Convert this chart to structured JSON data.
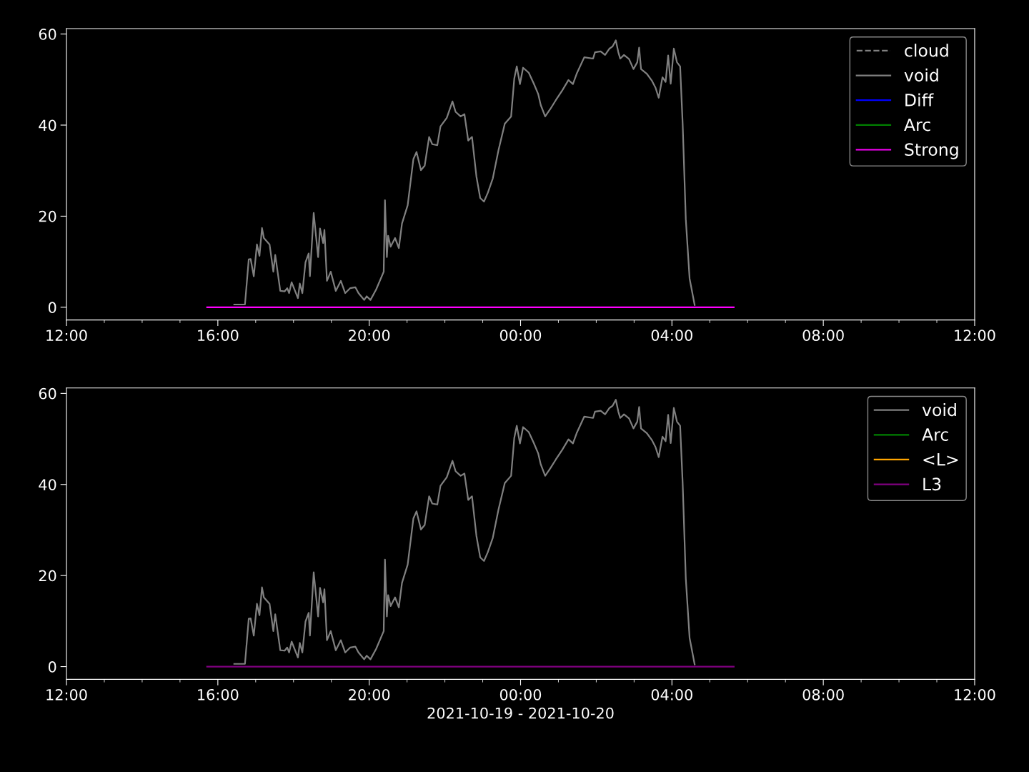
{
  "chart_data": [
    {
      "type": "line",
      "xlim": [
        "2021-10-19T12:00",
        "2021-10-20T12:00"
      ],
      "ylim": [
        -2.8,
        61.2
      ],
      "yticks": [
        0,
        20,
        40,
        60
      ],
      "xticks": [
        {
          "value": "2021-10-19T12:00",
          "label": "12:00"
        },
        {
          "value": "2021-10-19T13:00",
          "label": null
        },
        {
          "value": "2021-10-19T14:00",
          "label": null
        },
        {
          "value": "2021-10-19T15:00",
          "label": null
        },
        {
          "value": "2021-10-19T16:00",
          "label": "16:00"
        },
        {
          "value": "2021-10-19T17:00",
          "label": null
        },
        {
          "value": "2021-10-19T18:00",
          "label": null
        },
        {
          "value": "2021-10-19T19:00",
          "label": null
        },
        {
          "value": "2021-10-19T20:00",
          "label": "20:00"
        },
        {
          "value": "2021-10-19T21:00",
          "label": null
        },
        {
          "value": "2021-10-19T22:00",
          "label": null
        },
        {
          "value": "2021-10-19T23:00",
          "label": null
        },
        {
          "value": "2021-10-20T00:00",
          "label": "00:00"
        },
        {
          "value": "2021-10-20T01:00",
          "label": null
        },
        {
          "value": "2021-10-20T02:00",
          "label": null
        },
        {
          "value": "2021-10-20T03:00",
          "label": null
        },
        {
          "value": "2021-10-20T04:00",
          "label": "04:00"
        },
        {
          "value": "2021-10-20T05:00",
          "label": null
        },
        {
          "value": "2021-10-20T06:00",
          "label": null
        },
        {
          "value": "2021-10-20T07:00",
          "label": null
        },
        {
          "value": "2021-10-20T08:00",
          "label": "08:00"
        },
        {
          "value": "2021-10-20T09:00",
          "label": null
        },
        {
          "value": "2021-10-20T10:00",
          "label": null
        },
        {
          "value": "2021-10-20T11:00",
          "label": null
        },
        {
          "value": "2021-10-20T12:00",
          "label": "12:00"
        }
      ],
      "legend": "top right",
      "series": [
        {
          "name": "cloud",
          "color": "#808080",
          "line_style": "dashed"
        },
        {
          "name": "void",
          "color": "#808080",
          "x": [
            "2021-10-19T16:26",
            "2021-10-19T16:32",
            "2021-10-19T16:43",
            "2021-10-19T16:49",
            "2021-10-19T16:52",
            "2021-10-19T16:57",
            "2021-10-19T17:02",
            "2021-10-19T17:06",
            "2021-10-19T17:10",
            "2021-10-19T17:13",
            "2021-10-19T17:22",
            "2021-10-19T17:28",
            "2021-10-19T17:31",
            "2021-10-19T17:39",
            "2021-10-19T17:46",
            "2021-10-19T17:50",
            "2021-10-19T17:53",
            "2021-10-19T17:57",
            "2021-10-19T18:07",
            "2021-10-19T18:10",
            "2021-10-19T18:14",
            "2021-10-19T18:19",
            "2021-10-19T18:24",
            "2021-10-19T18:26",
            "2021-10-19T18:32",
            "2021-10-19T18:39",
            "2021-10-19T18:42",
            "2021-10-19T18:47",
            "2021-10-19T18:49",
            "2021-10-19T18:53",
            "2021-10-19T18:59",
            "2021-10-19T19:07",
            "2021-10-19T19:15",
            "2021-10-19T19:22",
            "2021-10-19T19:30",
            "2021-10-19T19:38",
            "2021-10-19T19:43",
            "2021-10-19T19:52",
            "2021-10-19T19:56",
            "2021-10-19T20:02",
            "2021-10-19T20:11",
            "2021-10-19T20:23",
            "2021-10-19T20:25",
            "2021-10-19T20:28",
            "2021-10-19T20:30",
            "2021-10-19T20:34",
            "2021-10-19T20:41",
            "2021-10-19T20:47",
            "2021-10-19T20:52",
            "2021-10-19T21:01",
            "2021-10-19T21:10",
            "2021-10-19T21:15",
            "2021-10-19T21:22",
            "2021-10-19T21:28",
            "2021-10-19T21:35",
            "2021-10-19T21:40",
            "2021-10-19T21:48",
            "2021-10-19T21:53",
            "2021-10-19T22:03",
            "2021-10-19T22:12",
            "2021-10-19T22:17",
            "2021-10-19T22:25",
            "2021-10-19T22:31",
            "2021-10-19T22:37",
            "2021-10-19T22:43",
            "2021-10-19T22:50",
            "2021-10-19T22:56",
            "2021-10-19T23:02",
            "2021-10-19T23:08",
            "2021-10-19T23:16",
            "2021-10-19T23:25",
            "2021-10-19T23:35",
            "2021-10-19T23:45",
            "2021-10-19T23:50",
            "2021-10-19T23:54",
            "2021-10-19T23:59",
            "2021-10-20T00:04",
            "2021-10-20T00:13",
            "2021-10-20T00:21",
            "2021-10-20T00:28",
            "2021-10-20T00:32",
            "2021-10-20T00:39",
            "2021-10-20T00:47",
            "2021-10-20T00:56",
            "2021-10-20T01:06",
            "2021-10-20T01:16",
            "2021-10-20T01:23",
            "2021-10-20T01:29",
            "2021-10-20T01:41",
            "2021-10-20T01:55",
            "2021-10-20T01:58",
            "2021-10-20T02:07",
            "2021-10-20T02:14",
            "2021-10-20T02:21",
            "2021-10-20T02:26",
            "2021-10-20T02:31",
            "2021-10-20T02:35",
            "2021-10-20T02:38",
            "2021-10-20T02:44",
            "2021-10-20T02:52",
            "2021-10-20T02:59",
            "2021-10-20T03:05",
            "2021-10-20T03:08",
            "2021-10-20T03:11",
            "2021-10-20T03:20",
            "2021-10-20T03:28",
            "2021-10-20T03:34",
            "2021-10-20T03:39",
            "2021-10-20T03:45",
            "2021-10-20T03:50",
            "2021-10-20T03:54",
            "2021-10-20T03:58",
            "2021-10-20T04:03",
            "2021-10-20T04:08",
            "2021-10-20T04:13",
            "2021-10-20T04:17",
            "2021-10-20T04:22",
            "2021-10-20T04:28",
            "2021-10-20T04:36"
          ],
          "values": [
            0.6,
            0.6,
            0.6,
            10.5,
            10.6,
            6.8,
            13.8,
            11.3,
            17.4,
            15.2,
            13.8,
            7.8,
            11.5,
            3.6,
            3.5,
            4.2,
            3.1,
            5.5,
            2.0,
            5.2,
            3.1,
            9.9,
            11.8,
            6.8,
            20.7,
            11.0,
            17.3,
            14.1,
            17.0,
            5.8,
            7.8,
            3.6,
            5.8,
            3.1,
            4.2,
            4.4,
            3.1,
            1.6,
            2.4,
            1.6,
            3.9,
            7.8,
            23.5,
            11.0,
            15.7,
            13.3,
            15.2,
            13.0,
            18.4,
            22.4,
            32.5,
            34.1,
            30.1,
            31.1,
            37.4,
            35.8,
            35.6,
            39.7,
            41.6,
            45.2,
            42.9,
            41.9,
            42.4,
            36.6,
            37.4,
            28.7,
            24.0,
            23.2,
            25.1,
            28.3,
            34.5,
            40.3,
            41.9,
            50.2,
            52.9,
            49.0,
            52.6,
            51.5,
            49.1,
            46.8,
            44.4,
            41.9,
            43.5,
            45.5,
            47.6,
            49.9,
            49.0,
            51.3,
            54.9,
            54.6,
            56.0,
            56.2,
            55.4,
            56.8,
            57.3,
            58.6,
            56.0,
            54.6,
            55.4,
            54.5,
            52.3,
            53.8,
            57.0,
            52.3,
            51.3,
            49.8,
            48.2,
            46.0,
            50.5,
            49.5,
            55.3,
            49.1,
            56.8,
            53.8,
            52.9,
            40.3,
            19.3,
            6.3,
            0.5
          ]
        },
        {
          "name": "Diff",
          "color": "#0000ff"
        },
        {
          "name": "Arc",
          "color": "#008000"
        },
        {
          "name": "Strong",
          "color": "#ff00ff",
          "x": [
            "2021-10-19T15:43",
            "2021-10-20T05:38"
          ],
          "values": [
            0,
            0
          ]
        }
      ]
    },
    {
      "type": "line",
      "xlim": [
        "2021-10-19T12:00",
        "2021-10-20T12:00"
      ],
      "ylim": [
        -2.8,
        61.2
      ],
      "yticks": [
        0,
        20,
        40,
        60
      ],
      "xlabel": "2021-10-19 - 2021-10-20",
      "xticks": [
        {
          "value": "2021-10-19T12:00",
          "label": "12:00"
        },
        {
          "value": "2021-10-19T13:00",
          "label": null
        },
        {
          "value": "2021-10-19T14:00",
          "label": null
        },
        {
          "value": "2021-10-19T15:00",
          "label": null
        },
        {
          "value": "2021-10-19T16:00",
          "label": "16:00"
        },
        {
          "value": "2021-10-19T17:00",
          "label": null
        },
        {
          "value": "2021-10-19T18:00",
          "label": null
        },
        {
          "value": "2021-10-19T19:00",
          "label": null
        },
        {
          "value": "2021-10-19T20:00",
          "label": "20:00"
        },
        {
          "value": "2021-10-19T21:00",
          "label": null
        },
        {
          "value": "2021-10-19T22:00",
          "label": null
        },
        {
          "value": "2021-10-19T23:00",
          "label": null
        },
        {
          "value": "2021-10-20T00:00",
          "label": "00:00"
        },
        {
          "value": "2021-10-20T01:00",
          "label": null
        },
        {
          "value": "2021-10-20T02:00",
          "label": null
        },
        {
          "value": "2021-10-20T03:00",
          "label": null
        },
        {
          "value": "2021-10-20T04:00",
          "label": "04:00"
        },
        {
          "value": "2021-10-20T05:00",
          "label": null
        },
        {
          "value": "2021-10-20T06:00",
          "label": null
        },
        {
          "value": "2021-10-20T07:00",
          "label": null
        },
        {
          "value": "2021-10-20T08:00",
          "label": "08:00"
        },
        {
          "value": "2021-10-20T09:00",
          "label": null
        },
        {
          "value": "2021-10-20T10:00",
          "label": null
        },
        {
          "value": "2021-10-20T11:00",
          "label": null
        },
        {
          "value": "2021-10-20T12:00",
          "label": "12:00"
        }
      ],
      "legend": "top right",
      "series": [
        {
          "name": "void",
          "color": "#808080",
          "x": [
            "2021-10-19T16:26",
            "2021-10-19T16:32",
            "2021-10-19T16:43",
            "2021-10-19T16:49",
            "2021-10-19T16:52",
            "2021-10-19T16:57",
            "2021-10-19T17:02",
            "2021-10-19T17:06",
            "2021-10-19T17:10",
            "2021-10-19T17:13",
            "2021-10-19T17:22",
            "2021-10-19T17:28",
            "2021-10-19T17:31",
            "2021-10-19T17:39",
            "2021-10-19T17:46",
            "2021-10-19T17:50",
            "2021-10-19T17:53",
            "2021-10-19T17:57",
            "2021-10-19T18:07",
            "2021-10-19T18:10",
            "2021-10-19T18:14",
            "2021-10-19T18:19",
            "2021-10-19T18:24",
            "2021-10-19T18:26",
            "2021-10-19T18:32",
            "2021-10-19T18:39",
            "2021-10-19T18:42",
            "2021-10-19T18:47",
            "2021-10-19T18:49",
            "2021-10-19T18:53",
            "2021-10-19T18:59",
            "2021-10-19T19:07",
            "2021-10-19T19:15",
            "2021-10-19T19:22",
            "2021-10-19T19:30",
            "2021-10-19T19:38",
            "2021-10-19T19:43",
            "2021-10-19T19:52",
            "2021-10-19T19:56",
            "2021-10-19T20:02",
            "2021-10-19T20:11",
            "2021-10-19T20:23",
            "2021-10-19T20:25",
            "2021-10-19T20:28",
            "2021-10-19T20:30",
            "2021-10-19T20:34",
            "2021-10-19T20:41",
            "2021-10-19T20:47",
            "2021-10-19T20:52",
            "2021-10-19T21:01",
            "2021-10-19T21:10",
            "2021-10-19T21:15",
            "2021-10-19T21:22",
            "2021-10-19T21:28",
            "2021-10-19T21:35",
            "2021-10-19T21:40",
            "2021-10-19T21:48",
            "2021-10-19T21:53",
            "2021-10-19T22:03",
            "2021-10-19T22:12",
            "2021-10-19T22:17",
            "2021-10-19T22:25",
            "2021-10-19T22:31",
            "2021-10-19T22:37",
            "2021-10-19T22:43",
            "2021-10-19T22:50",
            "2021-10-19T22:56",
            "2021-10-19T23:02",
            "2021-10-19T23:08",
            "2021-10-19T23:16",
            "2021-10-19T23:25",
            "2021-10-19T23:35",
            "2021-10-19T23:45",
            "2021-10-19T23:50",
            "2021-10-19T23:54",
            "2021-10-19T23:59",
            "2021-10-20T00:04",
            "2021-10-20T00:13",
            "2021-10-20T00:21",
            "2021-10-20T00:28",
            "2021-10-20T00:32",
            "2021-10-20T00:39",
            "2021-10-20T00:47",
            "2021-10-20T00:56",
            "2021-10-20T01:06",
            "2021-10-20T01:16",
            "2021-10-20T01:23",
            "2021-10-20T01:29",
            "2021-10-20T01:41",
            "2021-10-20T01:55",
            "2021-10-20T01:58",
            "2021-10-20T02:07",
            "2021-10-20T02:14",
            "2021-10-20T02:21",
            "2021-10-20T02:26",
            "2021-10-20T02:31",
            "2021-10-20T02:35",
            "2021-10-20T02:38",
            "2021-10-20T02:44",
            "2021-10-20T02:52",
            "2021-10-20T02:59",
            "2021-10-20T03:05",
            "2021-10-20T03:08",
            "2021-10-20T03:11",
            "2021-10-20T03:20",
            "2021-10-20T03:28",
            "2021-10-20T03:34",
            "2021-10-20T03:39",
            "2021-10-20T03:45",
            "2021-10-20T03:50",
            "2021-10-20T03:54",
            "2021-10-20T03:58",
            "2021-10-20T04:03",
            "2021-10-20T04:08",
            "2021-10-20T04:13",
            "2021-10-20T04:17",
            "2021-10-20T04:22",
            "2021-10-20T04:28",
            "2021-10-20T04:36"
          ],
          "values": [
            0.6,
            0.6,
            0.6,
            10.5,
            10.6,
            6.8,
            13.8,
            11.3,
            17.4,
            15.2,
            13.8,
            7.8,
            11.5,
            3.6,
            3.5,
            4.2,
            3.1,
            5.5,
            2.0,
            5.2,
            3.1,
            9.9,
            11.8,
            6.8,
            20.7,
            11.0,
            17.3,
            14.1,
            17.0,
            5.8,
            7.8,
            3.6,
            5.8,
            3.1,
            4.2,
            4.4,
            3.1,
            1.6,
            2.4,
            1.6,
            3.9,
            7.8,
            23.5,
            11.0,
            15.7,
            13.3,
            15.2,
            13.0,
            18.4,
            22.4,
            32.5,
            34.1,
            30.1,
            31.1,
            37.4,
            35.8,
            35.6,
            39.7,
            41.6,
            45.2,
            42.9,
            41.9,
            42.4,
            36.6,
            37.4,
            28.7,
            24.0,
            23.2,
            25.1,
            28.3,
            34.5,
            40.3,
            41.9,
            50.2,
            52.9,
            49.0,
            52.6,
            51.5,
            49.1,
            46.8,
            44.4,
            41.9,
            43.5,
            45.5,
            47.6,
            49.9,
            49.0,
            51.3,
            54.9,
            54.6,
            56.0,
            56.2,
            55.4,
            56.8,
            57.3,
            58.6,
            56.0,
            54.6,
            55.4,
            54.5,
            52.3,
            53.8,
            57.0,
            52.3,
            51.3,
            49.8,
            48.2,
            46.0,
            50.5,
            49.5,
            55.3,
            49.1,
            56.8,
            53.8,
            52.9,
            40.3,
            19.3,
            6.3,
            0.5
          ]
        },
        {
          "name": "Arc",
          "color": "#008000"
        },
        {
          "name": "<L>",
          "color": "#ffa500"
        },
        {
          "name": "L3",
          "color": "#800080",
          "x": [
            "2021-10-19T15:43",
            "2021-10-20T05:38"
          ],
          "values": [
            0,
            0
          ]
        }
      ]
    }
  ]
}
